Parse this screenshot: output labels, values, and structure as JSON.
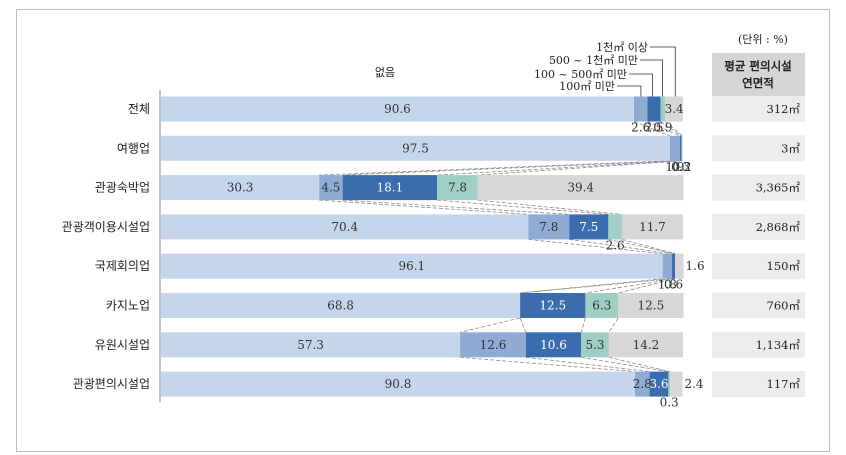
{
  "unit_label": "(단위 : %)",
  "side_header": {
    "line1": "평균 편의시설",
    "line2": "연면적"
  },
  "colors": {
    "none": "#c5d6ec",
    "lt100": "#8fabd3",
    "100to500": "#3b6cad",
    "500to1000": "#9fcfc3",
    "over1000": "#d7d7d7",
    "box": "#ececec",
    "header_box": "#d5d5d5"
  },
  "chart_data": {
    "type": "bar",
    "stacked": true,
    "orientation": "horizontal",
    "xlim": [
      0,
      100
    ],
    "categories": [
      "전체",
      "여행업",
      "관광숙박업",
      "관광객이용시설업",
      "국제회의업",
      "카지노업",
      "유원시설업",
      "관광편의시설업"
    ],
    "series": [
      {
        "name": "없음",
        "values": [
          90.6,
          97.5,
          30.3,
          70.4,
          96.1,
          68.8,
          57.3,
          90.8
        ]
      },
      {
        "name": "100㎡ 미만",
        "values": [
          2.6,
          1.9,
          4.5,
          7.8,
          1.8,
          0,
          12.6,
          2.8
        ]
      },
      {
        "name": "100 ~ 500㎡ 미만",
        "values": [
          2.5,
          0.3,
          18.1,
          7.5,
          0.6,
          12.5,
          10.6,
          3.6
        ]
      },
      {
        "name": "500 ~ 1천㎡ 미만",
        "values": [
          0.9,
          0.2,
          7.8,
          2.6,
          0,
          6.3,
          5.3,
          0.3
        ]
      },
      {
        "name": "1천㎡ 이상",
        "values": [
          3.4,
          0,
          39.4,
          11.7,
          1.6,
          12.5,
          14.2,
          2.4
        ]
      }
    ],
    "value_labels": [
      [
        "90.6",
        "2.6",
        "2.5",
        "0.9",
        "3.4"
      ],
      [
        "97.5",
        "1.9",
        "0.3",
        "0.2",
        ""
      ],
      [
        "30.3",
        "4.5",
        "18.1",
        "7.8",
        "39.4"
      ],
      [
        "70.4",
        "7.8",
        "7.5",
        "2.6",
        "11.7"
      ],
      [
        "96.1",
        "1.8",
        "0.6",
        "",
        "1.6"
      ],
      [
        "68.8",
        "",
        "12.5",
        "6.3",
        "12.5"
      ],
      [
        "57.3",
        "12.6",
        "10.6",
        "5.3",
        "14.2"
      ],
      [
        "90.8",
        "2.8",
        "3.6",
        "0.3",
        "2.4"
      ]
    ],
    "avg_area": [
      "312㎡",
      "3㎡",
      "3,365㎡",
      "2,868㎡",
      "150㎡",
      "760㎡",
      "1,134㎡",
      "117㎡"
    ]
  }
}
